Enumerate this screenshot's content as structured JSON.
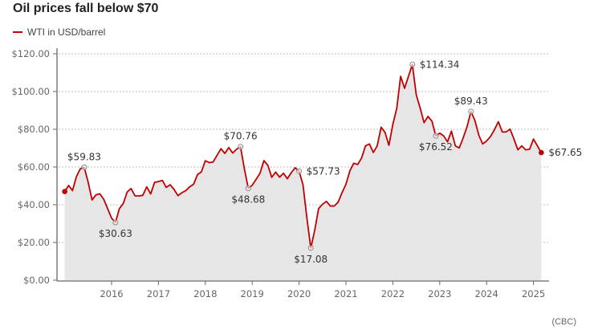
{
  "chart_data": {
    "type": "area",
    "title": "Oil prices fall below $70",
    "legend": [
      "WTI in USD/barrel"
    ],
    "legend_position": "top-left",
    "source": "(CBC)",
    "ylim": [
      0,
      120
    ],
    "y_ticks": [
      "$0.00",
      "$20.00",
      "$40.00",
      "$60.00",
      "$80.00",
      "$100.00",
      "$120.00"
    ],
    "x_ticks": [
      "2016",
      "2017",
      "2018",
      "2019",
      "2020",
      "2021",
      "2022",
      "2023",
      "2024",
      "2025"
    ],
    "grid": "horizontal dashed",
    "colors": {
      "line": "#c00000",
      "fill": "#e6e6e6"
    },
    "series": [
      {
        "name": "WTI in USD/barrel",
        "start": "2015-01",
        "frequency": "monthly",
        "values": [
          47,
          50.2,
          47.5,
          54.9,
          59.1,
          59.83,
          52,
          42.5,
          45.2,
          45.8,
          42.8,
          37.9,
          32.9,
          30.63,
          37.9,
          40.7,
          46.8,
          48.6,
          44.7,
          44.7,
          45,
          49.5,
          45.7,
          51.8,
          52.3,
          52.9,
          49.2,
          50.6,
          48.1,
          44.8,
          46.4,
          47.5,
          49.5,
          50.9,
          56,
          57.4,
          63.3,
          62.3,
          62.7,
          66.2,
          69.7,
          67.2,
          70.3,
          67.4,
          69.4,
          70.76,
          58.9,
          48.68,
          50.3,
          53.5,
          56.7,
          63.4,
          60.9,
          54.5,
          57.3,
          54.6,
          56.7,
          53.8,
          57,
          59.6,
          57.73,
          50.6,
          33,
          17.08,
          26.5,
          37.9,
          40.3,
          41.8,
          39.3,
          39.3,
          41.4,
          46.4,
          50.9,
          58,
          62,
          61.3,
          64.8,
          71.2,
          72.2,
          67.7,
          71.2,
          81.1,
          78.3,
          71.5,
          82.6,
          91.1,
          108.1,
          101.7,
          108.1,
          114.34,
          98.2,
          91.1,
          83.5,
          86.8,
          84.3,
          76.52,
          77.9,
          76.5,
          73.3,
          79,
          71.2,
          70.1,
          75.4,
          81.4,
          89.43,
          84.7,
          76.9,
          72.2,
          73.8,
          76.2,
          79.7,
          84,
          78.6,
          78.6,
          80.1,
          74.8,
          69.1,
          71.2,
          69.1,
          69.4,
          74.8,
          71.2,
          67.65
        ]
      }
    ],
    "annotations": [
      {
        "index": 0,
        "label": "",
        "marker": "dot"
      },
      {
        "index": 5,
        "label": "$59.83",
        "pos": "above"
      },
      {
        "index": 13,
        "label": "$30.63",
        "pos": "below"
      },
      {
        "index": 45,
        "label": "$70.76",
        "pos": "above"
      },
      {
        "index": 47,
        "label": "$48.68",
        "pos": "below"
      },
      {
        "index": 60,
        "label": "$57.73",
        "pos": "right"
      },
      {
        "index": 63,
        "label": "$17.08",
        "pos": "below"
      },
      {
        "index": 89,
        "label": "$114.34",
        "pos": "right"
      },
      {
        "index": 95,
        "label": "$76.52",
        "pos": "below"
      },
      {
        "index": 104,
        "label": "$89.43",
        "pos": "above"
      },
      {
        "index": 122,
        "label": "$67.65",
        "pos": "right",
        "marker": "dot"
      }
    ]
  }
}
